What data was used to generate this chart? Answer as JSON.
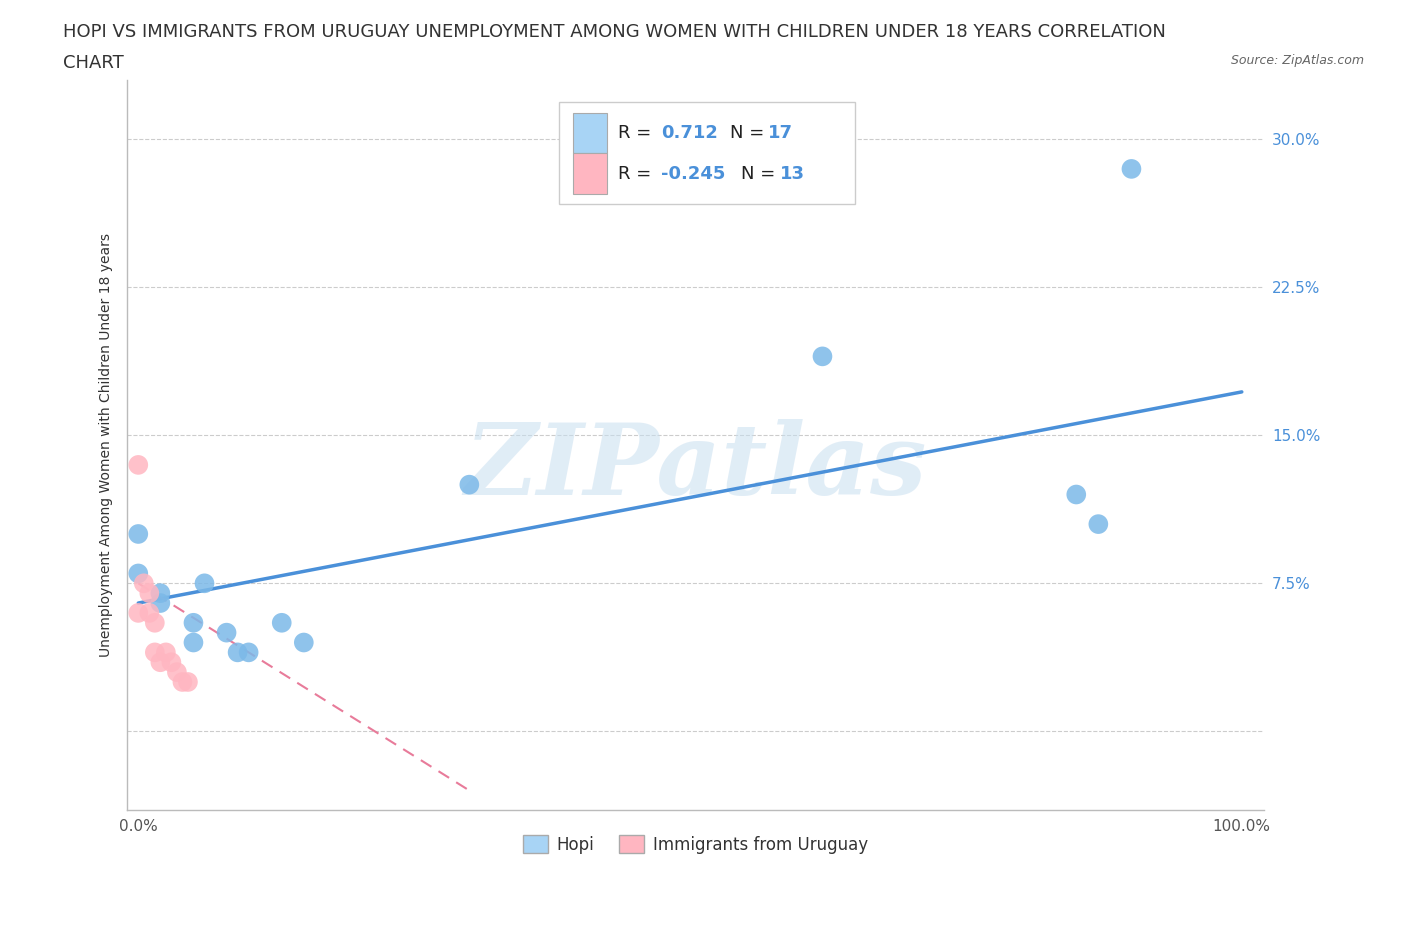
{
  "title_line1": "HOPI VS IMMIGRANTS FROM URUGUAY UNEMPLOYMENT AMONG WOMEN WITH CHILDREN UNDER 18 YEARS CORRELATION",
  "title_line2": "CHART",
  "source": "Source: ZipAtlas.com",
  "ylabel": "Unemployment Among Women with Children Under 18 years",
  "xlim": [
    -0.01,
    1.02
  ],
  "ylim": [
    -0.04,
    0.33
  ],
  "xticks": [
    0.0,
    0.1,
    0.2,
    0.3,
    0.4,
    0.5,
    0.6,
    0.7,
    0.8,
    0.9,
    1.0
  ],
  "xticklabels": [
    "0.0%",
    "",
    "",
    "",
    "",
    "",
    "",
    "",
    "",
    "",
    "100.0%"
  ],
  "yticks": [
    0.0,
    0.075,
    0.15,
    0.225,
    0.3
  ],
  "yticklabels": [
    "",
    "7.5%",
    "15.0%",
    "22.5%",
    "30.0%"
  ],
  "hopi_x": [
    0.0,
    0.0,
    0.02,
    0.02,
    0.05,
    0.05,
    0.06,
    0.08,
    0.09,
    0.1,
    0.13,
    0.15,
    0.3,
    0.62,
    0.85,
    0.87,
    0.9
  ],
  "hopi_y": [
    0.1,
    0.08,
    0.07,
    0.065,
    0.055,
    0.045,
    0.075,
    0.05,
    0.04,
    0.04,
    0.055,
    0.045,
    0.125,
    0.19,
    0.12,
    0.105,
    0.285
  ],
  "uruguay_x": [
    0.0,
    0.0,
    0.005,
    0.01,
    0.01,
    0.015,
    0.015,
    0.02,
    0.025,
    0.03,
    0.035,
    0.04,
    0.045
  ],
  "uruguay_y": [
    0.135,
    0.06,
    0.075,
    0.07,
    0.06,
    0.055,
    0.04,
    0.035,
    0.04,
    0.035,
    0.03,
    0.025,
    0.025
  ],
  "hopi_color": "#7cb9e8",
  "uruguay_color": "#ffb6c1",
  "hopi_trendline_color": "#4a90d9",
  "uruguay_trendline_color": "#e87b9a",
  "hopi_R": 0.712,
  "hopi_N": 17,
  "uruguay_R": -0.245,
  "uruguay_N": 13,
  "watermark": "ZIPatlas",
  "background_color": "#ffffff",
  "grid_color": "#cccccc",
  "title_fontsize": 13,
  "axis_label_fontsize": 10,
  "tick_fontsize": 11,
  "legend_box_color_hopi": "#a8d4f5",
  "legend_box_color_uruguay": "#ffb6c1",
  "hopi_trend_x0": 0.0,
  "hopi_trend_y0": 0.065,
  "hopi_trend_x1": 1.0,
  "hopi_trend_y1": 0.172,
  "uruguay_trend_x0": 0.0,
  "uruguay_trend_y0": 0.075,
  "uruguay_trend_x1": 0.3,
  "uruguay_trend_y1": -0.03
}
